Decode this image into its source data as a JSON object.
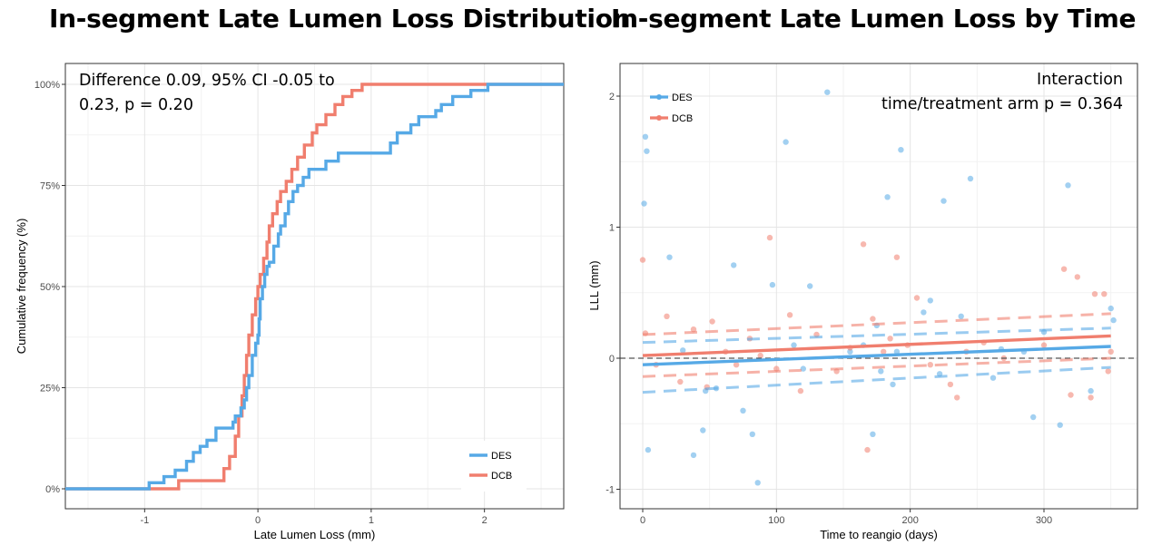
{
  "titles": {
    "left": "In-segment Late Lumen Loss Distribution",
    "right": "In-segment Late Lumen Loss by Time"
  },
  "colors": {
    "DES": "#56a9e6",
    "DCB": "#f07e6e"
  },
  "chart_data": [
    {
      "type": "line",
      "subtype": "step-ecdf",
      "title": "In-segment Late Lumen Loss Distribution",
      "xlabel": "Late Lumen Loss (mm)",
      "ylabel": "Cumulative frequency (%)",
      "xlim": [
        -1.7,
        2.7
      ],
      "ylim": [
        0,
        100
      ],
      "xticks": [
        -1,
        0,
        1,
        2
      ],
      "yticks": [
        0,
        25,
        50,
        75,
        100
      ],
      "ytick_labels": [
        "0%",
        "25%",
        "50%",
        "75%",
        "100%"
      ],
      "grid": true,
      "legend": "bottom-right",
      "annotation": [
        "Difference 0.09, 95% CI -0.05 to",
        "0.23, p = 0.20"
      ],
      "series": [
        {
          "name": "DES",
          "x": [
            -0.96,
            -0.83,
            -0.73,
            -0.63,
            -0.57,
            -0.51,
            -0.45,
            -0.37,
            -0.22,
            -0.2,
            -0.15,
            -0.12,
            -0.1,
            -0.08,
            -0.05,
            -0.02,
            0.0,
            0.01,
            0.02,
            0.04,
            0.06,
            0.08,
            0.1,
            0.14,
            0.18,
            0.2,
            0.24,
            0.27,
            0.31,
            0.35,
            0.4,
            0.45,
            0.6,
            0.71,
            1.17,
            1.23,
            1.35,
            1.42,
            1.57,
            1.62,
            1.72,
            1.88,
            2.03
          ],
          "y": [
            1.5,
            3.0,
            4.6,
            6.8,
            9.0,
            10.5,
            12.0,
            15.0,
            16.5,
            18.0,
            20.0,
            22.0,
            25.0,
            28.0,
            33.0,
            36.0,
            38.0,
            42.0,
            47.0,
            50.0,
            53.0,
            55.0,
            56.0,
            60.0,
            63.0,
            65.0,
            68.0,
            71.0,
            73.5,
            75.0,
            77.0,
            79.0,
            81.0,
            83.0,
            85.5,
            88.0,
            90.0,
            92.0,
            93.5,
            95.0,
            97.0,
            98.5,
            100.0
          ]
        },
        {
          "name": "DCB",
          "x": [
            -0.7,
            -0.3,
            -0.25,
            -0.2,
            -0.17,
            -0.14,
            -0.12,
            -0.1,
            -0.08,
            -0.05,
            -0.02,
            0.0,
            0.02,
            0.05,
            0.08,
            0.1,
            0.13,
            0.17,
            0.2,
            0.25,
            0.3,
            0.35,
            0.41,
            0.48,
            0.52,
            0.6,
            0.68,
            0.75,
            0.83,
            0.92
          ],
          "y": [
            2.0,
            5.0,
            8.0,
            13.0,
            18.0,
            23.0,
            28.0,
            33.0,
            38.0,
            43.0,
            47.0,
            50.0,
            53.0,
            57.0,
            61.0,
            65.0,
            68.0,
            71.0,
            73.5,
            76.0,
            79.0,
            82.0,
            85.0,
            88.0,
            90.0,
            92.5,
            95.0,
            97.0,
            98.5,
            100.0
          ]
        }
      ]
    },
    {
      "type": "scatter",
      "title": "In-segment Late Lumen Loss by Time",
      "xlabel": "Time to reangio (days)",
      "ylabel": "LLL (mm)",
      "xlim": [
        -10,
        370
      ],
      "ylim": [
        -1.05,
        2.1
      ],
      "xticks": [
        0,
        100,
        200,
        300
      ],
      "yticks": [
        -1,
        0,
        1,
        2
      ],
      "grid": true,
      "legend": "top-left",
      "reference_line_y": 0,
      "annotation": [
        "Interaction",
        "time/treatment arm p = 0.364"
      ],
      "series": [
        {
          "name": "DES",
          "points": [
            [
              1,
              1.18
            ],
            [
              2,
              1.69
            ],
            [
              3,
              1.58
            ],
            [
              4,
              -0.7
            ],
            [
              20,
              0.77
            ],
            [
              30,
              0.06
            ],
            [
              38,
              -0.74
            ],
            [
              45,
              -0.55
            ],
            [
              47,
              -0.25
            ],
            [
              55,
              -0.23
            ],
            [
              68,
              0.71
            ],
            [
              75,
              -0.4
            ],
            [
              82,
              -0.58
            ],
            [
              86,
              -0.95
            ],
            [
              97,
              0.56
            ],
            [
              107,
              1.65
            ],
            [
              113,
              0.1
            ],
            [
              120,
              -0.08
            ],
            [
              125,
              0.55
            ],
            [
              138,
              2.03
            ],
            [
              155,
              0.05
            ],
            [
              165,
              0.1
            ],
            [
              172,
              -0.58
            ],
            [
              175,
              0.25
            ],
            [
              178,
              -0.1
            ],
            [
              183,
              1.23
            ],
            [
              187,
              -0.2
            ],
            [
              190,
              0.05
            ],
            [
              193,
              1.59
            ],
            [
              210,
              0.35
            ],
            [
              215,
              0.44
            ],
            [
              222,
              -0.12
            ],
            [
              225,
              1.2
            ],
            [
              238,
              0.32
            ],
            [
              245,
              1.37
            ],
            [
              262,
              -0.15
            ],
            [
              268,
              0.07
            ],
            [
              285,
              0.05
            ],
            [
              292,
              -0.45
            ],
            [
              300,
              0.2
            ],
            [
              312,
              -0.51
            ],
            [
              318,
              1.32
            ],
            [
              335,
              -0.25
            ],
            [
              350,
              0.38
            ],
            [
              352,
              0.29
            ]
          ]
        },
        {
          "name": "DCB",
          "points": [
            [
              0,
              0.75
            ],
            [
              2,
              0.19
            ],
            [
              10,
              -0.05
            ],
            [
              18,
              0.32
            ],
            [
              28,
              -0.18
            ],
            [
              38,
              0.22
            ],
            [
              48,
              -0.22
            ],
            [
              52,
              0.28
            ],
            [
              62,
              0.05
            ],
            [
              70,
              -0.05
            ],
            [
              80,
              0.15
            ],
            [
              88,
              0.02
            ],
            [
              95,
              0.92
            ],
            [
              100,
              -0.08
            ],
            [
              110,
              0.33
            ],
            [
              118,
              -0.25
            ],
            [
              130,
              0.18
            ],
            [
              145,
              -0.1
            ],
            [
              155,
              0.08
            ],
            [
              165,
              0.87
            ],
            [
              168,
              -0.7
            ],
            [
              172,
              0.3
            ],
            [
              180,
              0.05
            ],
            [
              185,
              0.15
            ],
            [
              190,
              0.77
            ],
            [
              198,
              0.1
            ],
            [
              205,
              0.46
            ],
            [
              215,
              -0.05
            ],
            [
              230,
              -0.2
            ],
            [
              235,
              -0.3
            ],
            [
              242,
              0.05
            ],
            [
              255,
              0.12
            ],
            [
              270,
              0.0
            ],
            [
              300,
              0.1
            ],
            [
              315,
              0.68
            ],
            [
              320,
              -0.28
            ],
            [
              325,
              0.62
            ],
            [
              335,
              -0.3
            ],
            [
              338,
              0.49
            ],
            [
              345,
              0.49
            ],
            [
              348,
              -0.1
            ],
            [
              350,
              0.05
            ]
          ]
        }
      ],
      "regression": [
        {
          "name": "DES",
          "x": [
            0,
            350
          ],
          "fit": [
            -0.05,
            0.09
          ],
          "lower": [
            -0.26,
            -0.07
          ],
          "upper": [
            0.12,
            0.23
          ]
        },
        {
          "name": "DCB",
          "x": [
            0,
            350
          ],
          "fit": [
            0.02,
            0.17
          ],
          "lower": [
            -0.14,
            0.0
          ],
          "upper": [
            0.18,
            0.34
          ]
        }
      ]
    }
  ]
}
